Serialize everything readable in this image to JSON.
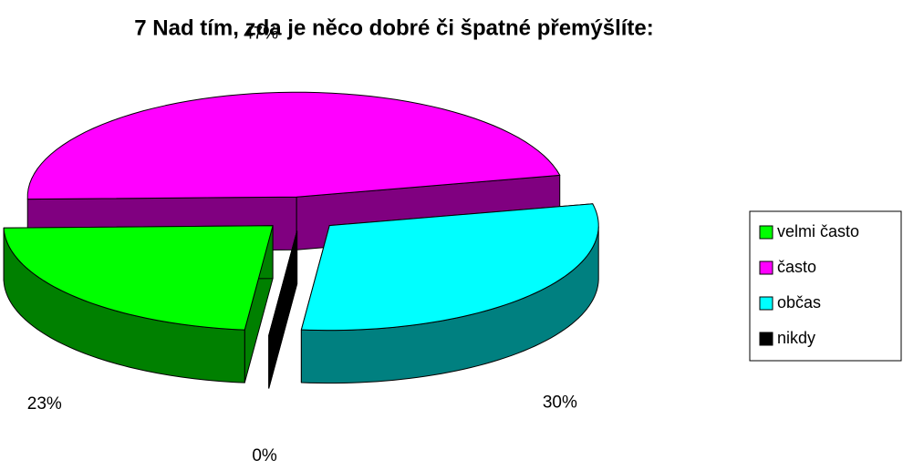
{
  "chart_data": {
    "type": "pie",
    "title": "7 Nad tím, zda je něco dobré či špatné přemýšlíte:",
    "categories": [
      "velmi často",
      "často",
      "občas",
      "nikdy"
    ],
    "values": [
      23,
      47,
      30,
      0
    ],
    "value_labels": [
      "23%",
      "47%",
      "30%",
      "0%"
    ],
    "colors": [
      "#00ff00",
      "#ff00ff",
      "#00ffff",
      "#000000"
    ],
    "side_colors": [
      "#008000",
      "#800080",
      "#008080",
      "#000000"
    ],
    "legend": "right"
  }
}
